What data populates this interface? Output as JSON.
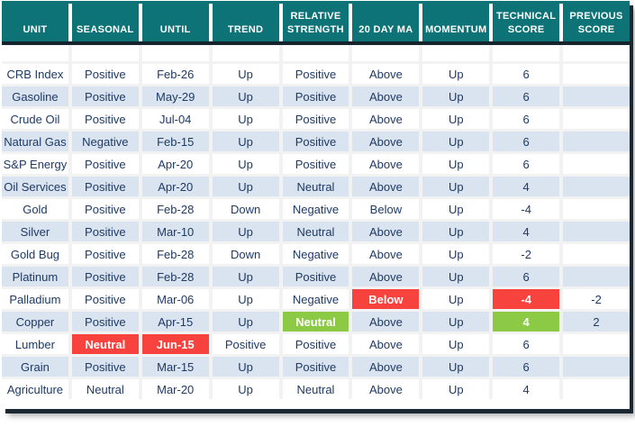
{
  "colors": {
    "header_teal": "#0e7377",
    "divider_dark": "#16242e",
    "stripe_blue": "#dae3f0",
    "text_navy": "#1e3a66",
    "highlight_red": "#f8423e",
    "highlight_green": "#8cc944"
  },
  "table": {
    "columns": [
      {
        "key": "unit",
        "label": "UNIT"
      },
      {
        "key": "seasonal",
        "label": "SEASONAL"
      },
      {
        "key": "until",
        "label": "UNTIL"
      },
      {
        "key": "trend",
        "label": "TREND"
      },
      {
        "key": "relative_strength",
        "label": "RELATIVE STRENGTH"
      },
      {
        "key": "ma20",
        "label": "20 DAY MA"
      },
      {
        "key": "momentum",
        "label": "MOMENTUM"
      },
      {
        "key": "technical_score",
        "label": "TECHNICAL SCORE"
      },
      {
        "key": "previous_score",
        "label": "PREVIOUS SCORE"
      }
    ],
    "rows": [
      {
        "cells": {
          "unit": "CRB Index",
          "seasonal": "Positive",
          "until": "Feb-26",
          "trend": "Up",
          "relative_strength": "Positive",
          "ma20": "Above",
          "momentum": "Up",
          "technical_score": "6",
          "previous_score": ""
        }
      },
      {
        "cells": {
          "unit": "Gasoline",
          "seasonal": "Positive",
          "until": "May-29",
          "trend": "Up",
          "relative_strength": "Positive",
          "ma20": "Above",
          "momentum": "Up",
          "technical_score": "6",
          "previous_score": ""
        }
      },
      {
        "cells": {
          "unit": "Crude Oil",
          "seasonal": "Positive",
          "until": "Jul-04",
          "trend": "Up",
          "relative_strength": "Positive",
          "ma20": "Above",
          "momentum": "Up",
          "technical_score": "6",
          "previous_score": ""
        }
      },
      {
        "cells": {
          "unit": "Natural Gas",
          "seasonal": "Negative",
          "until": "Feb-15",
          "trend": "Up",
          "relative_strength": "Positive",
          "ma20": "Above",
          "momentum": "Up",
          "technical_score": "6",
          "previous_score": ""
        }
      },
      {
        "cells": {
          "unit": "S&P Energy",
          "seasonal": "Positive",
          "until": "Apr-20",
          "trend": "Up",
          "relative_strength": "Positive",
          "ma20": "Above",
          "momentum": "Up",
          "technical_score": "6",
          "previous_score": ""
        }
      },
      {
        "cells": {
          "unit": "Oil Services",
          "seasonal": "Positive",
          "until": "Apr-20",
          "trend": "Up",
          "relative_strength": "Neutral",
          "ma20": "Above",
          "momentum": "Up",
          "technical_score": "4",
          "previous_score": ""
        }
      },
      {
        "cells": {
          "unit": "Gold",
          "seasonal": "Positive",
          "until": "Feb-28",
          "trend": "Down",
          "relative_strength": "Negative",
          "ma20": "Below",
          "momentum": "Up",
          "technical_score": "-4",
          "previous_score": ""
        }
      },
      {
        "cells": {
          "unit": "Silver",
          "seasonal": "Positive",
          "until": "Mar-10",
          "trend": "Up",
          "relative_strength": "Neutral",
          "ma20": "Above",
          "momentum": "Up",
          "technical_score": "4",
          "previous_score": ""
        }
      },
      {
        "cells": {
          "unit": "Gold Bug",
          "seasonal": "Positive",
          "until": "Feb-28",
          "trend": "Down",
          "relative_strength": "Negative",
          "ma20": "Above",
          "momentum": "Up",
          "technical_score": "-2",
          "previous_score": ""
        }
      },
      {
        "cells": {
          "unit": "Platinum",
          "seasonal": "Positive",
          "until": "Feb-28",
          "trend": "Up",
          "relative_strength": "Positive",
          "ma20": "Above",
          "momentum": "Up",
          "technical_score": "6",
          "previous_score": ""
        }
      },
      {
        "cells": {
          "unit": "Palladium",
          "seasonal": "Positive",
          "until": "Mar-06",
          "trend": "Up",
          "relative_strength": "Negative",
          "ma20": "Below",
          "momentum": "Up",
          "technical_score": "-4",
          "previous_score": "-2"
        },
        "highlights": {
          "ma20": "red",
          "technical_score": "red"
        }
      },
      {
        "cells": {
          "unit": "Copper",
          "seasonal": "Positive",
          "until": "Apr-15",
          "trend": "Up",
          "relative_strength": "Neutral",
          "ma20": "Above",
          "momentum": "Up",
          "technical_score": "4",
          "previous_score": "2"
        },
        "highlights": {
          "relative_strength": "green",
          "technical_score": "green"
        }
      },
      {
        "cells": {
          "unit": "Lumber",
          "seasonal": "Neutral",
          "until": "Jun-15",
          "trend": "Positive",
          "relative_strength": "Positive",
          "ma20": "Above",
          "momentum": "Up",
          "technical_score": "6",
          "previous_score": ""
        },
        "highlights": {
          "seasonal": "red",
          "until": "red"
        }
      },
      {
        "cells": {
          "unit": "Grain",
          "seasonal": "Positive",
          "until": "Mar-15",
          "trend": "Up",
          "relative_strength": "Positive",
          "ma20": "Above",
          "momentum": "Up",
          "technical_score": "6",
          "previous_score": ""
        }
      },
      {
        "cells": {
          "unit": "Agriculture",
          "seasonal": "Neutral",
          "until": "Mar-20",
          "trend": "Up",
          "relative_strength": "Neutral",
          "ma20": "Above",
          "momentum": "Up",
          "technical_score": "4",
          "previous_score": ""
        }
      }
    ]
  },
  "chart_data": {
    "type": "table",
    "title": "",
    "columns": [
      "UNIT",
      "SEASONAL",
      "UNTIL",
      "TREND",
      "RELATIVE STRENGTH",
      "20 DAY MA",
      "MOMENTUM",
      "TECHNICAL SCORE",
      "PREVIOUS SCORE"
    ],
    "rows": [
      [
        "CRB Index",
        "Positive",
        "Feb-26",
        "Up",
        "Positive",
        "Above",
        "Up",
        6,
        null
      ],
      [
        "Gasoline",
        "Positive",
        "May-29",
        "Up",
        "Positive",
        "Above",
        "Up",
        6,
        null
      ],
      [
        "Crude Oil",
        "Positive",
        "Jul-04",
        "Up",
        "Positive",
        "Above",
        "Up",
        6,
        null
      ],
      [
        "Natural Gas",
        "Negative",
        "Feb-15",
        "Up",
        "Positive",
        "Above",
        "Up",
        6,
        null
      ],
      [
        "S&P Energy",
        "Positive",
        "Apr-20",
        "Up",
        "Positive",
        "Above",
        "Up",
        6,
        null
      ],
      [
        "Oil Services",
        "Positive",
        "Apr-20",
        "Up",
        "Neutral",
        "Above",
        "Up",
        4,
        null
      ],
      [
        "Gold",
        "Positive",
        "Feb-28",
        "Down",
        "Negative",
        "Below",
        "Up",
        -4,
        null
      ],
      [
        "Silver",
        "Positive",
        "Mar-10",
        "Up",
        "Neutral",
        "Above",
        "Up",
        4,
        null
      ],
      [
        "Gold Bug",
        "Positive",
        "Feb-28",
        "Down",
        "Negative",
        "Above",
        "Up",
        -2,
        null
      ],
      [
        "Platinum",
        "Positive",
        "Feb-28",
        "Up",
        "Positive",
        "Above",
        "Up",
        6,
        null
      ],
      [
        "Palladium",
        "Positive",
        "Mar-06",
        "Up",
        "Negative",
        "Below",
        "Up",
        -4,
        -2
      ],
      [
        "Copper",
        "Positive",
        "Apr-15",
        "Up",
        "Neutral",
        "Above",
        "Up",
        4,
        2
      ],
      [
        "Lumber",
        "Neutral",
        "Jun-15",
        "Positive",
        "Positive",
        "Above",
        "Up",
        6,
        null
      ],
      [
        "Grain",
        "Positive",
        "Mar-15",
        "Up",
        "Positive",
        "Above",
        "Up",
        6,
        null
      ],
      [
        "Agriculture",
        "Neutral",
        "Mar-20",
        "Up",
        "Neutral",
        "Above",
        "Up",
        4,
        null
      ]
    ],
    "highlighted_cells": [
      {
        "row": "Palladium",
        "column": "20 DAY MA",
        "color": "red"
      },
      {
        "row": "Palladium",
        "column": "TECHNICAL SCORE",
        "color": "red"
      },
      {
        "row": "Copper",
        "column": "RELATIVE STRENGTH",
        "color": "green"
      },
      {
        "row": "Copper",
        "column": "TECHNICAL SCORE",
        "color": "green"
      },
      {
        "row": "Lumber",
        "column": "SEASONAL",
        "color": "red"
      },
      {
        "row": "Lumber",
        "column": "UNTIL",
        "color": "red"
      }
    ]
  }
}
